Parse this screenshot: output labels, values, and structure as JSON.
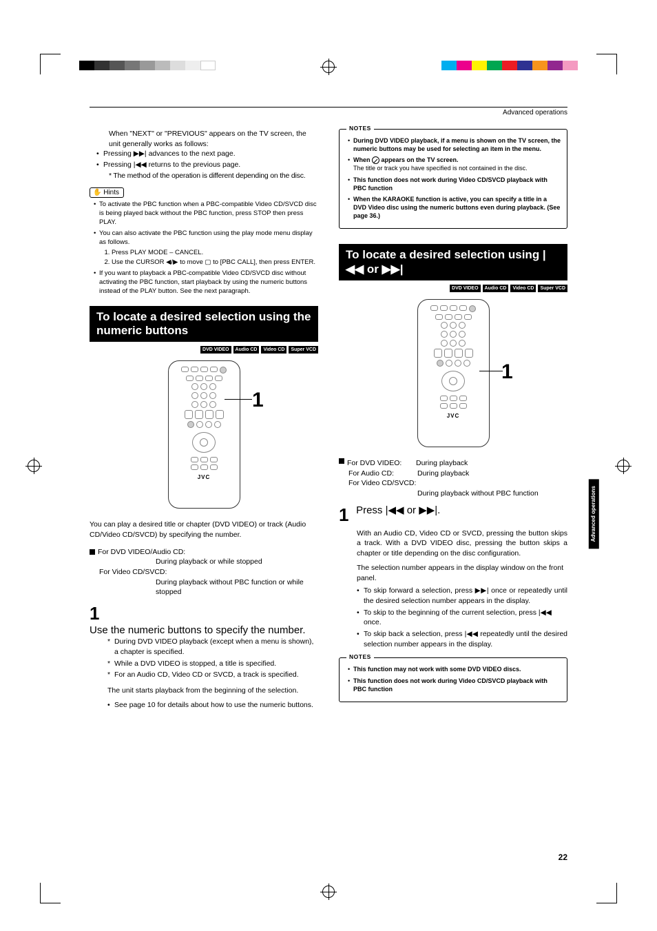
{
  "print_marks": {
    "gray_swatches": [
      "#000000",
      "#333333",
      "#555555",
      "#777777",
      "#999999",
      "#bbbbbb",
      "#dddddd",
      "#eeeeee",
      "#ffffff"
    ],
    "color_swatches": [
      "#00aeef",
      "#ec008c",
      "#fff200",
      "#00a651",
      "#ed1c24",
      "#2e3192",
      "#f7941d",
      "#92278f",
      "#f49ac1"
    ]
  },
  "header": {
    "category": "Advanced operations"
  },
  "side_tab": "Advanced operations",
  "page_number": "22",
  "left": {
    "intro": "When \"NEXT\" or \"PREVIOUS\" appears on the TV screen, the unit generally works as follows:",
    "lines": [
      "Pressing ▶▶| advances to the next page.",
      "Pressing |◀◀ returns to the previous page."
    ],
    "note_star": "The method of the operation is different depending on the disc.",
    "hints_label": "Hints",
    "hints": [
      "To activate the PBC function when a PBC-compatible Video CD/SVCD disc is being played back without the PBC function, press STOP then press PLAY.",
      "You can also activate the PBC function using the play mode menu display as follows."
    ],
    "hints_sub": [
      "Press PLAY MODE – CANCEL.",
      "Use the CURSOR ◀/▶ to move ▢ to [PBC CALL], then press ENTER."
    ],
    "hints_tail": "If you want to playback a PBC-compatible Video CD/SVCD disc without activating the PBC function, start playback by using the numeric buttons instead of the PLAY button. See the next paragraph.",
    "section_title": "To locate a desired selection using the numeric buttons",
    "badges": [
      "DVD VIDEO",
      "Audio CD",
      "Video CD",
      "Super VCD"
    ],
    "remote_label": "1",
    "remote_brand": "JVC",
    "paragraph": "You can play a desired title or chapter (DVD VIDEO) or track (Audio CD/Video CD/SVCD) by specifying the number.",
    "modes_head1": "For DVD VIDEO/Audio CD:",
    "modes_val1": "During playback or while stopped",
    "modes_head2": "For Video CD/SVCD:",
    "modes_val2": "During playback without PBC function or while stopped",
    "step_num": "1",
    "step_head": "Use the numeric buttons to specify the number.",
    "step_items": [
      "During DVD VIDEO playback (except when a menu is shown), a chapter is specified.",
      "While a DVD VIDEO is stopped, a title is specified.",
      "For an Audio CD, Video CD or SVCD, a track is specified."
    ],
    "step_tail1": "The unit starts playback from the beginning of the selection.",
    "step_tail2": "See page 10 for details about how to use the numeric buttons."
  },
  "right": {
    "notes1_label": "NOTES",
    "notes1": [
      {
        "bold": "During DVD VIDEO playback, if a menu is shown on the TV screen, the numeric buttons may be used for selecting an item in the menu.",
        "plain": ""
      },
      {
        "bold": "When ⊘ appears on the TV screen.",
        "plain": "The title or track you have specified is not contained in the disc."
      },
      {
        "bold": "This function does not work during Video CD/SVCD playback with PBC function",
        "plain": ""
      },
      {
        "bold": "When the KARAOKE function is active, you can specify a title in a DVD Video disc using the numeric buttons even during playback. (See page 36.)",
        "plain": ""
      }
    ],
    "section_title": "To locate a desired selection using |◀◀ or ▶▶|",
    "badges": [
      "DVD VIDEO",
      "Audio CD",
      "Video CD",
      "Super VCD"
    ],
    "remote_label": "1",
    "remote_brand": "JVC",
    "modes": [
      {
        "lbl": "For DVD VIDEO:",
        "val": "During playback"
      },
      {
        "lbl": "For Audio CD:",
        "val": "During playback"
      },
      {
        "lbl": "For Video CD/SVCD:",
        "val": ""
      }
    ],
    "modes_sub": "During playback without PBC function",
    "step_num": "1",
    "step_head": "Press |◀◀ or ▶▶|.",
    "step_p1": "With an Audio CD, Video CD or SVCD, pressing the button skips a track. With a DVD VIDEO disc, pressing the button skips a chapter or title depending on the disc configuration.",
    "step_p2": "The selection number appears in the display window on the front panel.",
    "step_items": [
      "To skip forward a selection, press ▶▶| once or repeatedly until the desired selection number appears in the display.",
      "To skip to the beginning of the current selection, press |◀◀ once.",
      "To skip back a selection, press |◀◀ repeatedly until the desired selection number appears in the display."
    ],
    "notes2_label": "NOTES",
    "notes2": [
      "This function may not work with some DVD VIDEO discs.",
      "This function does not work during Video CD/SVCD playback with PBC function"
    ]
  }
}
